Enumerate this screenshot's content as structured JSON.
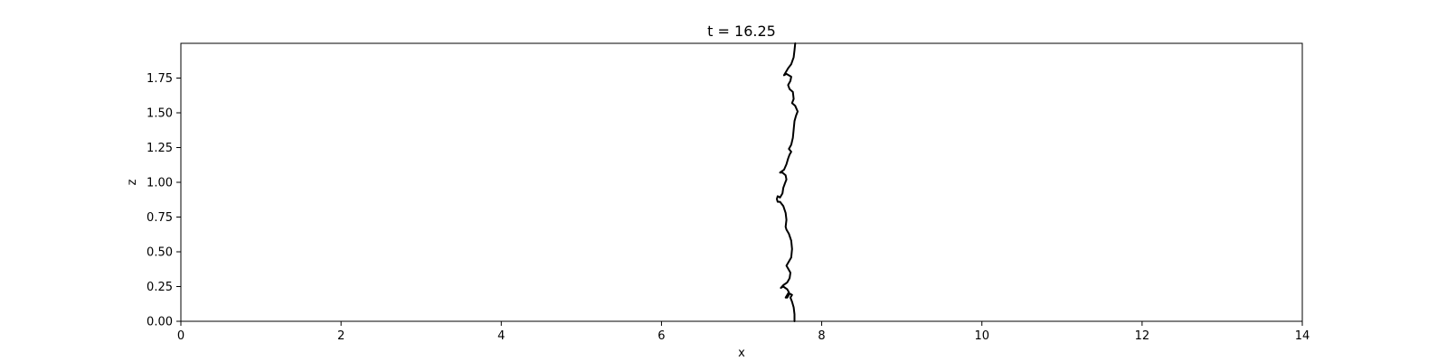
{
  "chart_data": {
    "type": "line",
    "title": "t = 16.25",
    "xlabel": "x",
    "ylabel": "z",
    "xlim": [
      0,
      14
    ],
    "ylim": [
      0,
      2
    ],
    "grid": false,
    "x_ticks": [
      0,
      2,
      4,
      6,
      8,
      10,
      12,
      14
    ],
    "x_tick_labels": [
      "0",
      "2",
      "4",
      "6",
      "8",
      "10",
      "12",
      "14"
    ],
    "y_ticks": [
      0,
      0.25,
      0.5,
      0.75,
      1.0,
      1.25,
      1.5,
      1.75
    ],
    "y_tick_labels": [
      "0.00",
      "0.25",
      "0.50",
      "0.75",
      "1.00",
      "1.25",
      "1.50",
      "1.75"
    ],
    "series": [
      {
        "name": "interface",
        "color": "#000000",
        "points": [
          [
            7.66,
            0.0
          ],
          [
            7.66,
            0.05
          ],
          [
            7.65,
            0.1
          ],
          [
            7.63,
            0.14
          ],
          [
            7.61,
            0.17
          ],
          [
            7.63,
            0.19
          ],
          [
            7.6,
            0.2
          ],
          [
            7.57,
            0.17
          ],
          [
            7.55,
            0.17
          ],
          [
            7.59,
            0.21
          ],
          [
            7.57,
            0.23
          ],
          [
            7.52,
            0.25
          ],
          [
            7.49,
            0.24
          ],
          [
            7.52,
            0.26
          ],
          [
            7.57,
            0.28
          ],
          [
            7.6,
            0.31
          ],
          [
            7.61,
            0.35
          ],
          [
            7.58,
            0.38
          ],
          [
            7.56,
            0.4
          ],
          [
            7.59,
            0.43
          ],
          [
            7.62,
            0.46
          ],
          [
            7.63,
            0.52
          ],
          [
            7.62,
            0.58
          ],
          [
            7.59,
            0.63
          ],
          [
            7.56,
            0.66
          ],
          [
            7.55,
            0.68
          ],
          [
            7.56,
            0.73
          ],
          [
            7.55,
            0.78
          ],
          [
            7.52,
            0.83
          ],
          [
            7.48,
            0.86
          ],
          [
            7.45,
            0.86
          ],
          [
            7.44,
            0.88
          ],
          [
            7.45,
            0.9
          ],
          [
            7.48,
            0.89
          ],
          [
            7.51,
            0.92
          ],
          [
            7.52,
            0.96
          ],
          [
            7.54,
            0.99
          ],
          [
            7.56,
            1.02
          ],
          [
            7.55,
            1.05
          ],
          [
            7.51,
            1.07
          ],
          [
            7.48,
            1.07
          ],
          [
            7.53,
            1.09
          ],
          [
            7.56,
            1.13
          ],
          [
            7.58,
            1.17
          ],
          [
            7.6,
            1.2
          ],
          [
            7.62,
            1.22
          ],
          [
            7.59,
            1.24
          ],
          [
            7.62,
            1.27
          ],
          [
            7.64,
            1.32
          ],
          [
            7.65,
            1.38
          ],
          [
            7.66,
            1.44
          ],
          [
            7.68,
            1.48
          ],
          [
            7.7,
            1.51
          ],
          [
            7.67,
            1.55
          ],
          [
            7.63,
            1.57
          ],
          [
            7.65,
            1.6
          ],
          [
            7.64,
            1.65
          ],
          [
            7.6,
            1.67
          ],
          [
            7.58,
            1.7
          ],
          [
            7.61,
            1.73
          ],
          [
            7.62,
            1.76
          ],
          [
            7.56,
            1.78
          ],
          [
            7.53,
            1.77
          ],
          [
            7.58,
            1.82
          ],
          [
            7.62,
            1.85
          ],
          [
            7.65,
            1.9
          ],
          [
            7.66,
            1.95
          ],
          [
            7.67,
            2.0
          ]
        ]
      }
    ]
  }
}
